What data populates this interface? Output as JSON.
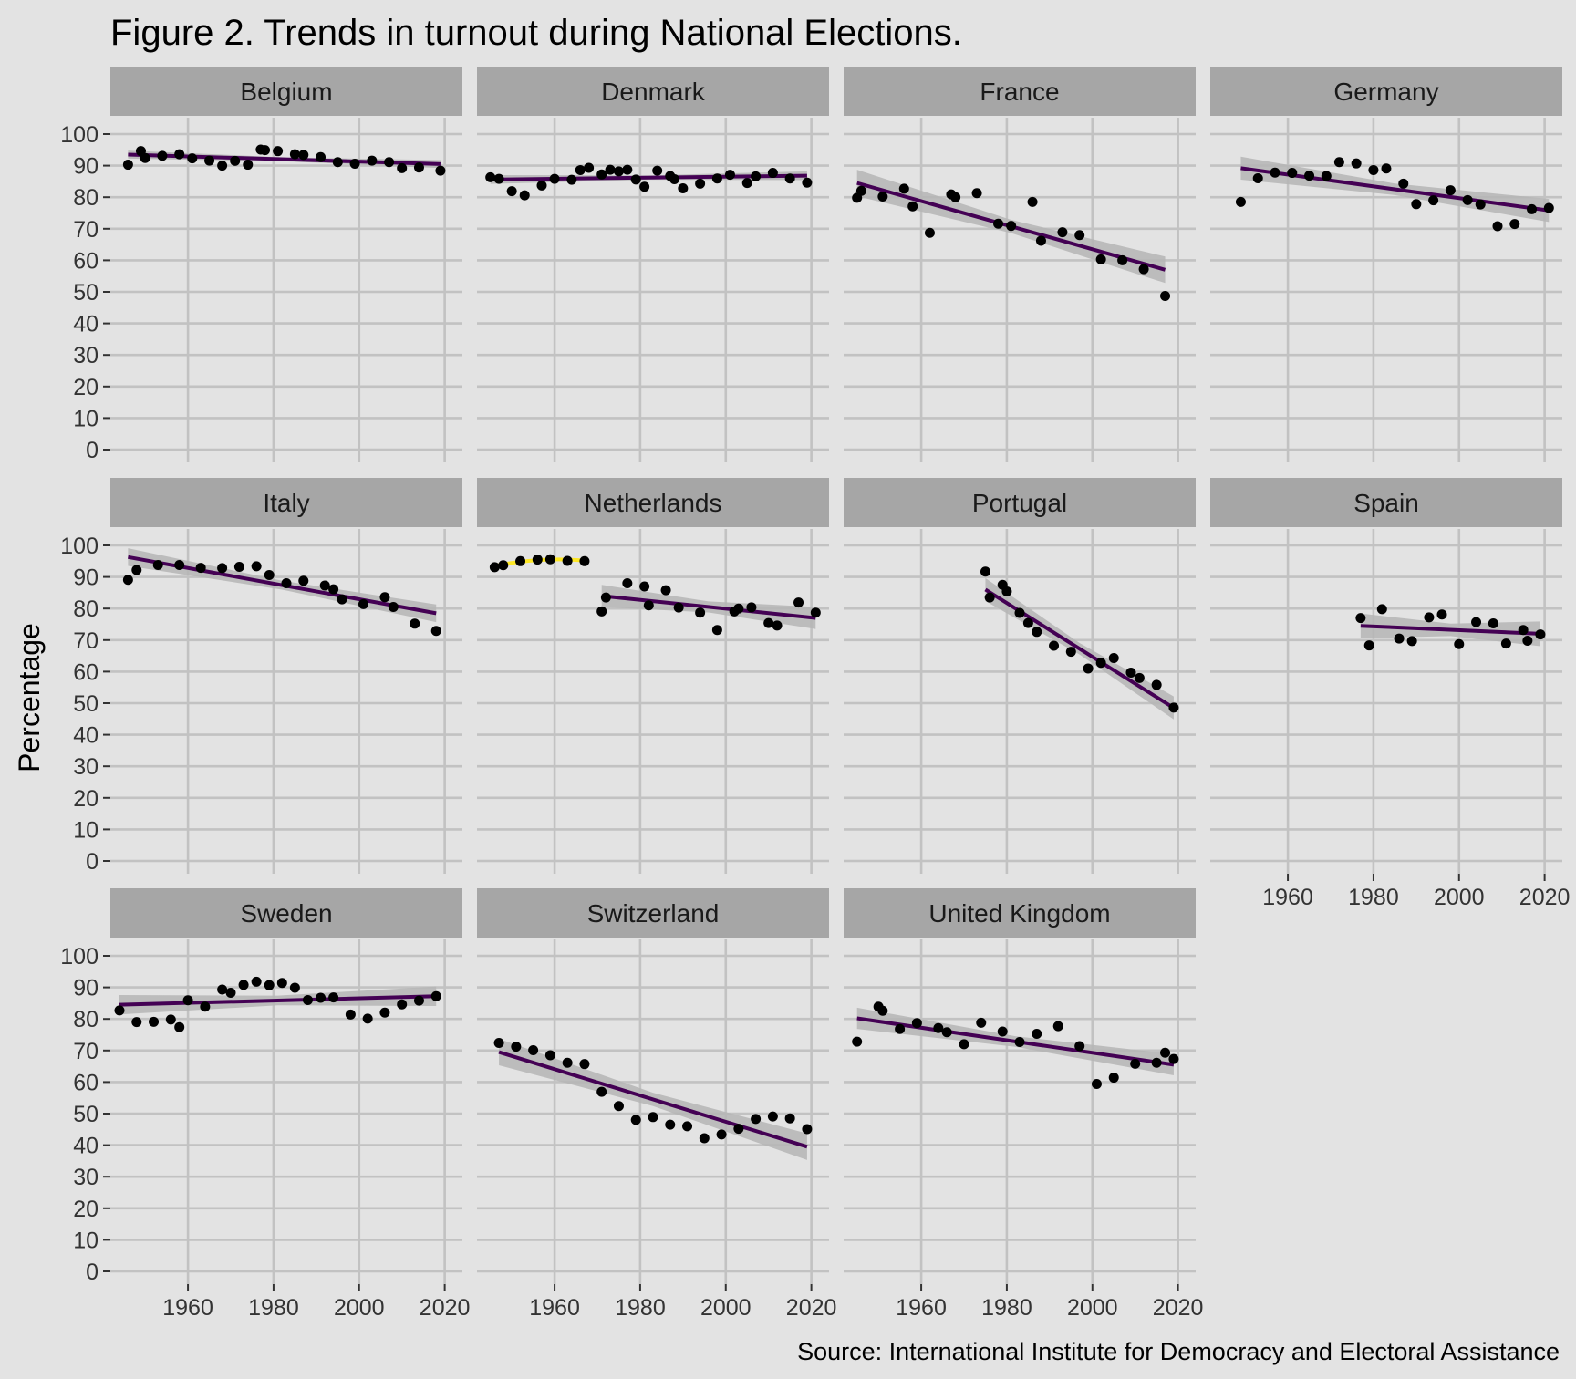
{
  "chart_data": {
    "type": "scatter",
    "title": "Figure 2. Trends in turnout during National Elections.",
    "ylabel": "Percentage",
    "xlabel": "",
    "caption": "Source: International Institute for Democracy and Electoral Assistance",
    "xlim": [
      1944,
      2022
    ],
    "ylim": [
      0,
      100
    ],
    "x_ticks": [
      1960,
      1980,
      2000,
      2020
    ],
    "y_ticks": [
      0,
      10,
      20,
      30,
      40,
      50,
      60,
      70,
      80,
      90,
      100
    ],
    "grid": true,
    "facet_layout": "3 rows x 4 columns",
    "colors": {
      "panel_background": "#e3e3e3",
      "strip_background": "#a6a6a6",
      "grid": "#c2c2c2",
      "points": "#000000",
      "trend_line": "#440154",
      "confidence_band": "#b5b5b5",
      "netherlands_early_trend": "#fde725"
    },
    "panels": [
      {
        "name": "Belgium",
        "x": [
          1946,
          1949,
          1950,
          1954,
          1958,
          1961,
          1965,
          1968,
          1971,
          1974,
          1977,
          1978,
          1981,
          1985,
          1987,
          1991,
          1995,
          1999,
          2003,
          2007,
          2010,
          2014,
          2019
        ],
        "y": [
          90.3,
          94.6,
          92.4,
          93.1,
          93.6,
          92.3,
          91.6,
          90.0,
          91.5,
          90.3,
          95.1,
          94.9,
          94.6,
          93.6,
          93.4,
          92.7,
          91.1,
          90.6,
          91.6,
          91.1,
          89.2,
          89.4,
          88.4
        ],
        "trend": [
          {
            "x": [
              1946,
              2019
            ],
            "y": [
              93.5,
              90.5
            ]
          }
        ],
        "band_halfwidth": 0.9
      },
      {
        "name": "Denmark",
        "x": [
          1945,
          1947,
          1950,
          1953,
          1957,
          1960,
          1964,
          1966,
          1968,
          1971,
          1973,
          1975,
          1977,
          1979,
          1981,
          1984,
          1987,
          1988,
          1990,
          1994,
          1998,
          2001,
          2005,
          2007,
          2011,
          2015,
          2019
        ],
        "y": [
          86.3,
          85.8,
          81.9,
          80.6,
          83.7,
          85.8,
          85.5,
          88.6,
          89.3,
          87.2,
          88.7,
          88.2,
          88.7,
          85.6,
          83.3,
          88.4,
          86.7,
          85.7,
          82.8,
          84.3,
          85.9,
          87.1,
          84.5,
          86.6,
          87.7,
          85.9,
          84.6
        ],
        "trend": [
          {
            "x": [
              1945,
              2019
            ],
            "y": [
              85.6,
              86.8
            ]
          }
        ],
        "band_halfwidth": 1.0
      },
      {
        "name": "France",
        "x": [
          1945,
          1946,
          1951,
          1956,
          1958,
          1962,
          1967,
          1968,
          1973,
          1978,
          1981,
          1986,
          1988,
          1993,
          1997,
          2002,
          2007,
          2012,
          2017
        ],
        "y": [
          79.8,
          82.0,
          80.2,
          82.7,
          77.1,
          68.7,
          80.9,
          80.0,
          81.3,
          71.6,
          70.9,
          78.5,
          66.2,
          68.9,
          68.0,
          60.3,
          60.0,
          57.2,
          48.7
        ],
        "trend": [
          {
            "x": [
              1945,
              2017
            ],
            "y": [
              84.5,
              57.0
            ]
          }
        ],
        "band_halfwidth": 3.0
      },
      {
        "name": "Germany",
        "x": [
          1949,
          1953,
          1957,
          1961,
          1965,
          1969,
          1972,
          1976,
          1980,
          1983,
          1987,
          1990,
          1994,
          1998,
          2002,
          2005,
          2009,
          2013,
          2017,
          2021
        ],
        "y": [
          78.5,
          86.0,
          87.8,
          87.7,
          86.8,
          86.7,
          91.1,
          90.7,
          88.6,
          89.1,
          84.3,
          77.8,
          79.0,
          82.2,
          79.1,
          77.7,
          70.8,
          71.5,
          76.2,
          76.6
        ],
        "trend": [
          {
            "x": [
              1949,
              2021
            ],
            "y": [
              89.2,
              75.8
            ]
          }
        ],
        "band_halfwidth": 2.6
      },
      {
        "name": "Italy",
        "x": [
          1946,
          1948,
          1953,
          1958,
          1963,
          1968,
          1972,
          1976,
          1979,
          1983,
          1987,
          1992,
          1994,
          1996,
          2001,
          2006,
          2008,
          2013,
          2018
        ],
        "y": [
          89.1,
          92.2,
          93.8,
          93.8,
          92.9,
          92.8,
          93.2,
          93.4,
          90.6,
          88.0,
          88.8,
          87.3,
          86.1,
          82.9,
          81.4,
          83.6,
          80.5,
          75.2,
          72.9
        ],
        "trend": [
          {
            "x": [
              1946,
              2018
            ],
            "y": [
              96.3,
              78.5
            ]
          }
        ],
        "band_halfwidth": 2.0
      },
      {
        "name": "Netherlands",
        "x": [
          1946,
          1948,
          1952,
          1956,
          1959,
          1963,
          1967,
          1971,
          1972,
          1977,
          1981,
          1982,
          1986,
          1989,
          1994,
          1998,
          2002,
          2003,
          2006,
          2010,
          2012,
          2017,
          2021
        ],
        "y": [
          93.1,
          93.7,
          95.0,
          95.5,
          95.6,
          95.1,
          95.0,
          79.1,
          83.5,
          88.0,
          87.0,
          81.0,
          85.8,
          80.3,
          78.7,
          73.2,
          79.1,
          80.0,
          80.4,
          75.4,
          74.6,
          81.9,
          78.7
        ],
        "trend": [
          {
            "x": [
              1971,
              2021
            ],
            "y": [
              84.0,
              77.0
            ]
          },
          {
            "x": [
              1946,
              1967
            ],
            "y": [
              93.5,
              95.2
            ]
          }
        ],
        "band_halfwidth": 2.5
      },
      {
        "name": "Portugal",
        "x": [
          1975,
          1976,
          1979,
          1980,
          1983,
          1985,
          1987,
          1991,
          1995,
          1999,
          2002,
          2005,
          2009,
          2011,
          2015,
          2019
        ],
        "y": [
          91.7,
          83.5,
          87.5,
          85.4,
          78.6,
          75.4,
          72.6,
          68.2,
          66.3,
          61.0,
          62.8,
          64.3,
          59.7,
          58.0,
          55.8,
          48.6
        ],
        "trend": [
          {
            "x": [
              1975,
              2019
            ],
            "y": [
              86.0,
              48.5
            ]
          }
        ],
        "band_halfwidth": 2.6
      },
      {
        "name": "Spain",
        "x": [
          1977,
          1979,
          1982,
          1986,
          1989,
          1993,
          1996,
          2000,
          2004,
          2008,
          2011,
          2015,
          2016,
          2019
        ],
        "y": [
          77.0,
          68.3,
          79.8,
          70.5,
          69.7,
          77.2,
          78.1,
          68.7,
          75.7,
          75.3,
          68.9,
          73.2,
          69.8,
          71.8
        ],
        "trend": [
          {
            "x": [
              1977,
              2019
            ],
            "y": [
              74.5,
              72.0
            ]
          }
        ],
        "band_halfwidth": 2.8
      },
      {
        "name": "Sweden",
        "x": [
          1944,
          1948,
          1952,
          1956,
          1958,
          1960,
          1964,
          1968,
          1970,
          1973,
          1976,
          1979,
          1982,
          1985,
          1988,
          1991,
          1994,
          1998,
          2002,
          2006,
          2010,
          2014,
          2018
        ],
        "y": [
          82.7,
          79.0,
          79.1,
          79.8,
          77.4,
          85.9,
          83.9,
          89.3,
          88.3,
          90.8,
          91.8,
          90.7,
          91.4,
          89.9,
          86.0,
          86.7,
          86.8,
          81.4,
          80.1,
          82.0,
          84.6,
          85.8,
          87.2
        ],
        "trend": [
          {
            "x": [
              1944,
              2018
            ],
            "y": [
              84.5,
              87.2
            ]
          }
        ],
        "band_halfwidth": 2.2
      },
      {
        "name": "Switzerland",
        "x": [
          1947,
          1951,
          1955,
          1959,
          1963,
          1967,
          1971,
          1975,
          1979,
          1983,
          1987,
          1991,
          1995,
          1999,
          2003,
          2007,
          2011,
          2015,
          2019
        ],
        "y": [
          72.4,
          71.2,
          70.1,
          68.5,
          66.1,
          65.7,
          56.9,
          52.4,
          48.0,
          48.9,
          46.5,
          46.0,
          42.2,
          43.4,
          45.2,
          48.3,
          49.1,
          48.5,
          45.1
        ],
        "trend": [
          {
            "x": [
              1947,
              2019
            ],
            "y": [
              69.5,
              39.5
            ]
          }
        ],
        "band_halfwidth": 3.0
      },
      {
        "name": "United Kingdom",
        "x": [
          1945,
          1950,
          1951,
          1955,
          1959,
          1964,
          1966,
          1970,
          1974,
          1979,
          1983,
          1987,
          1992,
          1997,
          2001,
          2005,
          2010,
          2015,
          2017,
          2019
        ],
        "y": [
          72.8,
          83.9,
          82.6,
          76.8,
          78.7,
          77.1,
          75.8,
          72.0,
          78.8,
          76.0,
          72.7,
          75.3,
          77.7,
          71.4,
          59.4,
          61.4,
          65.8,
          66.1,
          69.3,
          67.3
        ],
        "trend": [
          {
            "x": [
              1945,
              2019
            ],
            "y": [
              80.2,
              65.5
            ]
          }
        ],
        "band_halfwidth": 2.4
      }
    ]
  }
}
